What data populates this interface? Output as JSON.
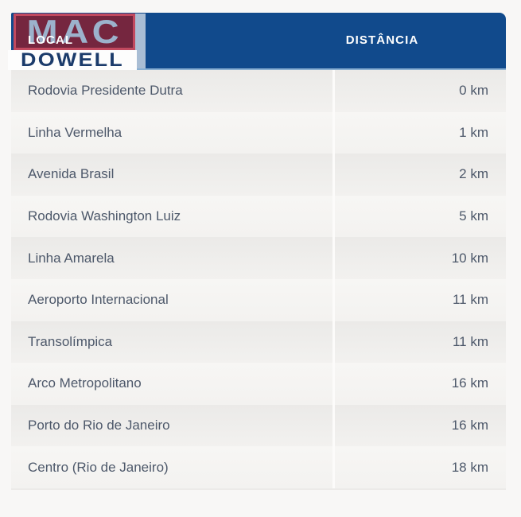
{
  "page": {
    "background_color": "#f8f7f6"
  },
  "logo": {
    "word_top": "MAC",
    "word_bottom": "DOWELL",
    "colors": {
      "box_background": "#75263f",
      "box_border": "#c2495f",
      "word_top_text": "#9cb2cc",
      "word_bottom_text": "#1b3b6b",
      "side_band": "#a9bdd4"
    }
  },
  "table": {
    "header": {
      "local_label": "LOCAL",
      "distance_label": "DISTÂNCIA",
      "background_color": "#114a8c",
      "underline_color": "#8ab0d2",
      "text_color": "#ffffff"
    },
    "row_text_color": "#4d586a",
    "rows": [
      {
        "local": "Rodovia Presidente Dutra",
        "distance": "0 km"
      },
      {
        "local": "Linha Vermelha",
        "distance": "1 km"
      },
      {
        "local": "Avenida Brasil",
        "distance": "2 km"
      },
      {
        "local": "Rodovia Washington Luiz",
        "distance": "5 km"
      },
      {
        "local": "Linha Amarela",
        "distance": "10 km"
      },
      {
        "local": "Aeroporto Internacional",
        "distance": "11 km"
      },
      {
        "local": "Transolímpica",
        "distance": "11 km"
      },
      {
        "local": "Arco Metropolitano",
        "distance": "16 km"
      },
      {
        "local": "Porto do Rio de Janeiro",
        "distance": "16 km"
      },
      {
        "local": "Centro (Rio de Janeiro)",
        "distance": "18 km"
      }
    ]
  },
  "chart_data": {
    "type": "table",
    "title": "",
    "columns": [
      "LOCAL",
      "DISTÂNCIA"
    ],
    "rows": [
      [
        "Rodovia Presidente Dutra",
        "0 km"
      ],
      [
        "Linha Vermelha",
        "1 km"
      ],
      [
        "Avenida Brasil",
        "2 km"
      ],
      [
        "Rodovia Washington Luiz",
        "5 km"
      ],
      [
        "Linha Amarela",
        "10 km"
      ],
      [
        "Aeroporto Internacional",
        "11 km"
      ],
      [
        "Transolímpica",
        "11 km"
      ],
      [
        "Arco Metropolitano",
        "16 km"
      ],
      [
        "Porto do Rio de Janeiro",
        "16 km"
      ],
      [
        "Centro (Rio de Janeiro)",
        "18 km"
      ]
    ],
    "distances_km": [
      0,
      1,
      2,
      5,
      10,
      11,
      11,
      16,
      16,
      18
    ]
  }
}
